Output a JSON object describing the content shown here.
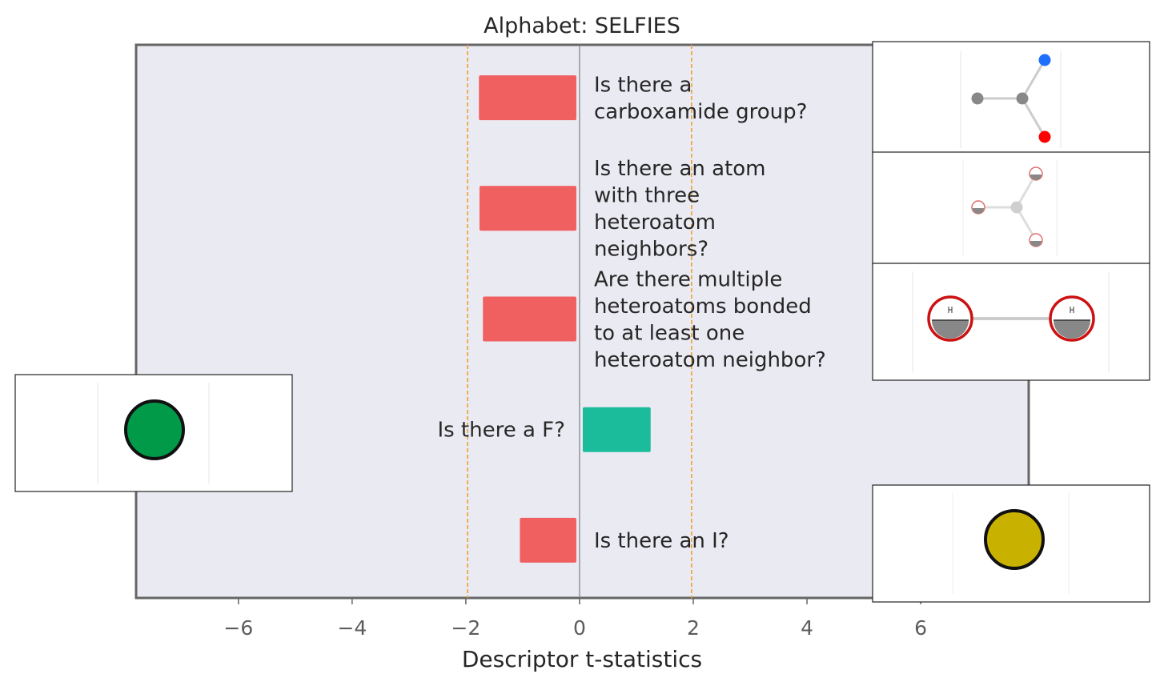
{
  "chart_data": {
    "type": "bar",
    "orientation": "horizontal",
    "title": "Alphabet: SELFIES",
    "xlabel": "Descriptor t-statistics",
    "ylabel": "",
    "xlim": [
      -7.8,
      7.9
    ],
    "xticks": [
      "−6",
      "−4",
      "−2",
      "0",
      "2",
      "4",
      "6"
    ],
    "xtick_values": [
      -6,
      -4,
      -2,
      0,
      2,
      4,
      6
    ],
    "threshold_lines": [
      -1.97,
      1.97
    ],
    "grid": false,
    "categories": [
      "Is there a carboxamide group?",
      "Is there an atom with three heteroatom neighbors?",
      "Are there multiple heteroatoms bonded to at least one heteroatom neighbor?",
      "Is there a F?",
      "Is there an I?"
    ],
    "label_lines": [
      [
        "Is there a",
        "carboxamide group?"
      ],
      [
        "Is there an atom",
        "with three",
        "heteroatom",
        "neighbors?"
      ],
      [
        "Are there multiple",
        "heteroatoms bonded",
        "to at least one",
        "heteroatom neighbor?"
      ],
      [
        "Is there a F?"
      ],
      [
        "Is there an I?"
      ]
    ],
    "values": [
      -1.77,
      -1.76,
      -1.7,
      1.25,
      -1.05
    ],
    "colors": {
      "negative": "#f06060",
      "positive": "#1abc9c",
      "threshold": "#f0a030",
      "zero_line": "#808080",
      "plot_background": "#eaeaf2",
      "frame": "#666666"
    },
    "molecule_icons": [
      "carboxamide-fragment-icon",
      "three-heteroatom-neighbor-fragment-icon",
      "heteroatom-bond-fragment-icon",
      "fluorine-atom-icon",
      "iodine-atom-icon"
    ]
  }
}
